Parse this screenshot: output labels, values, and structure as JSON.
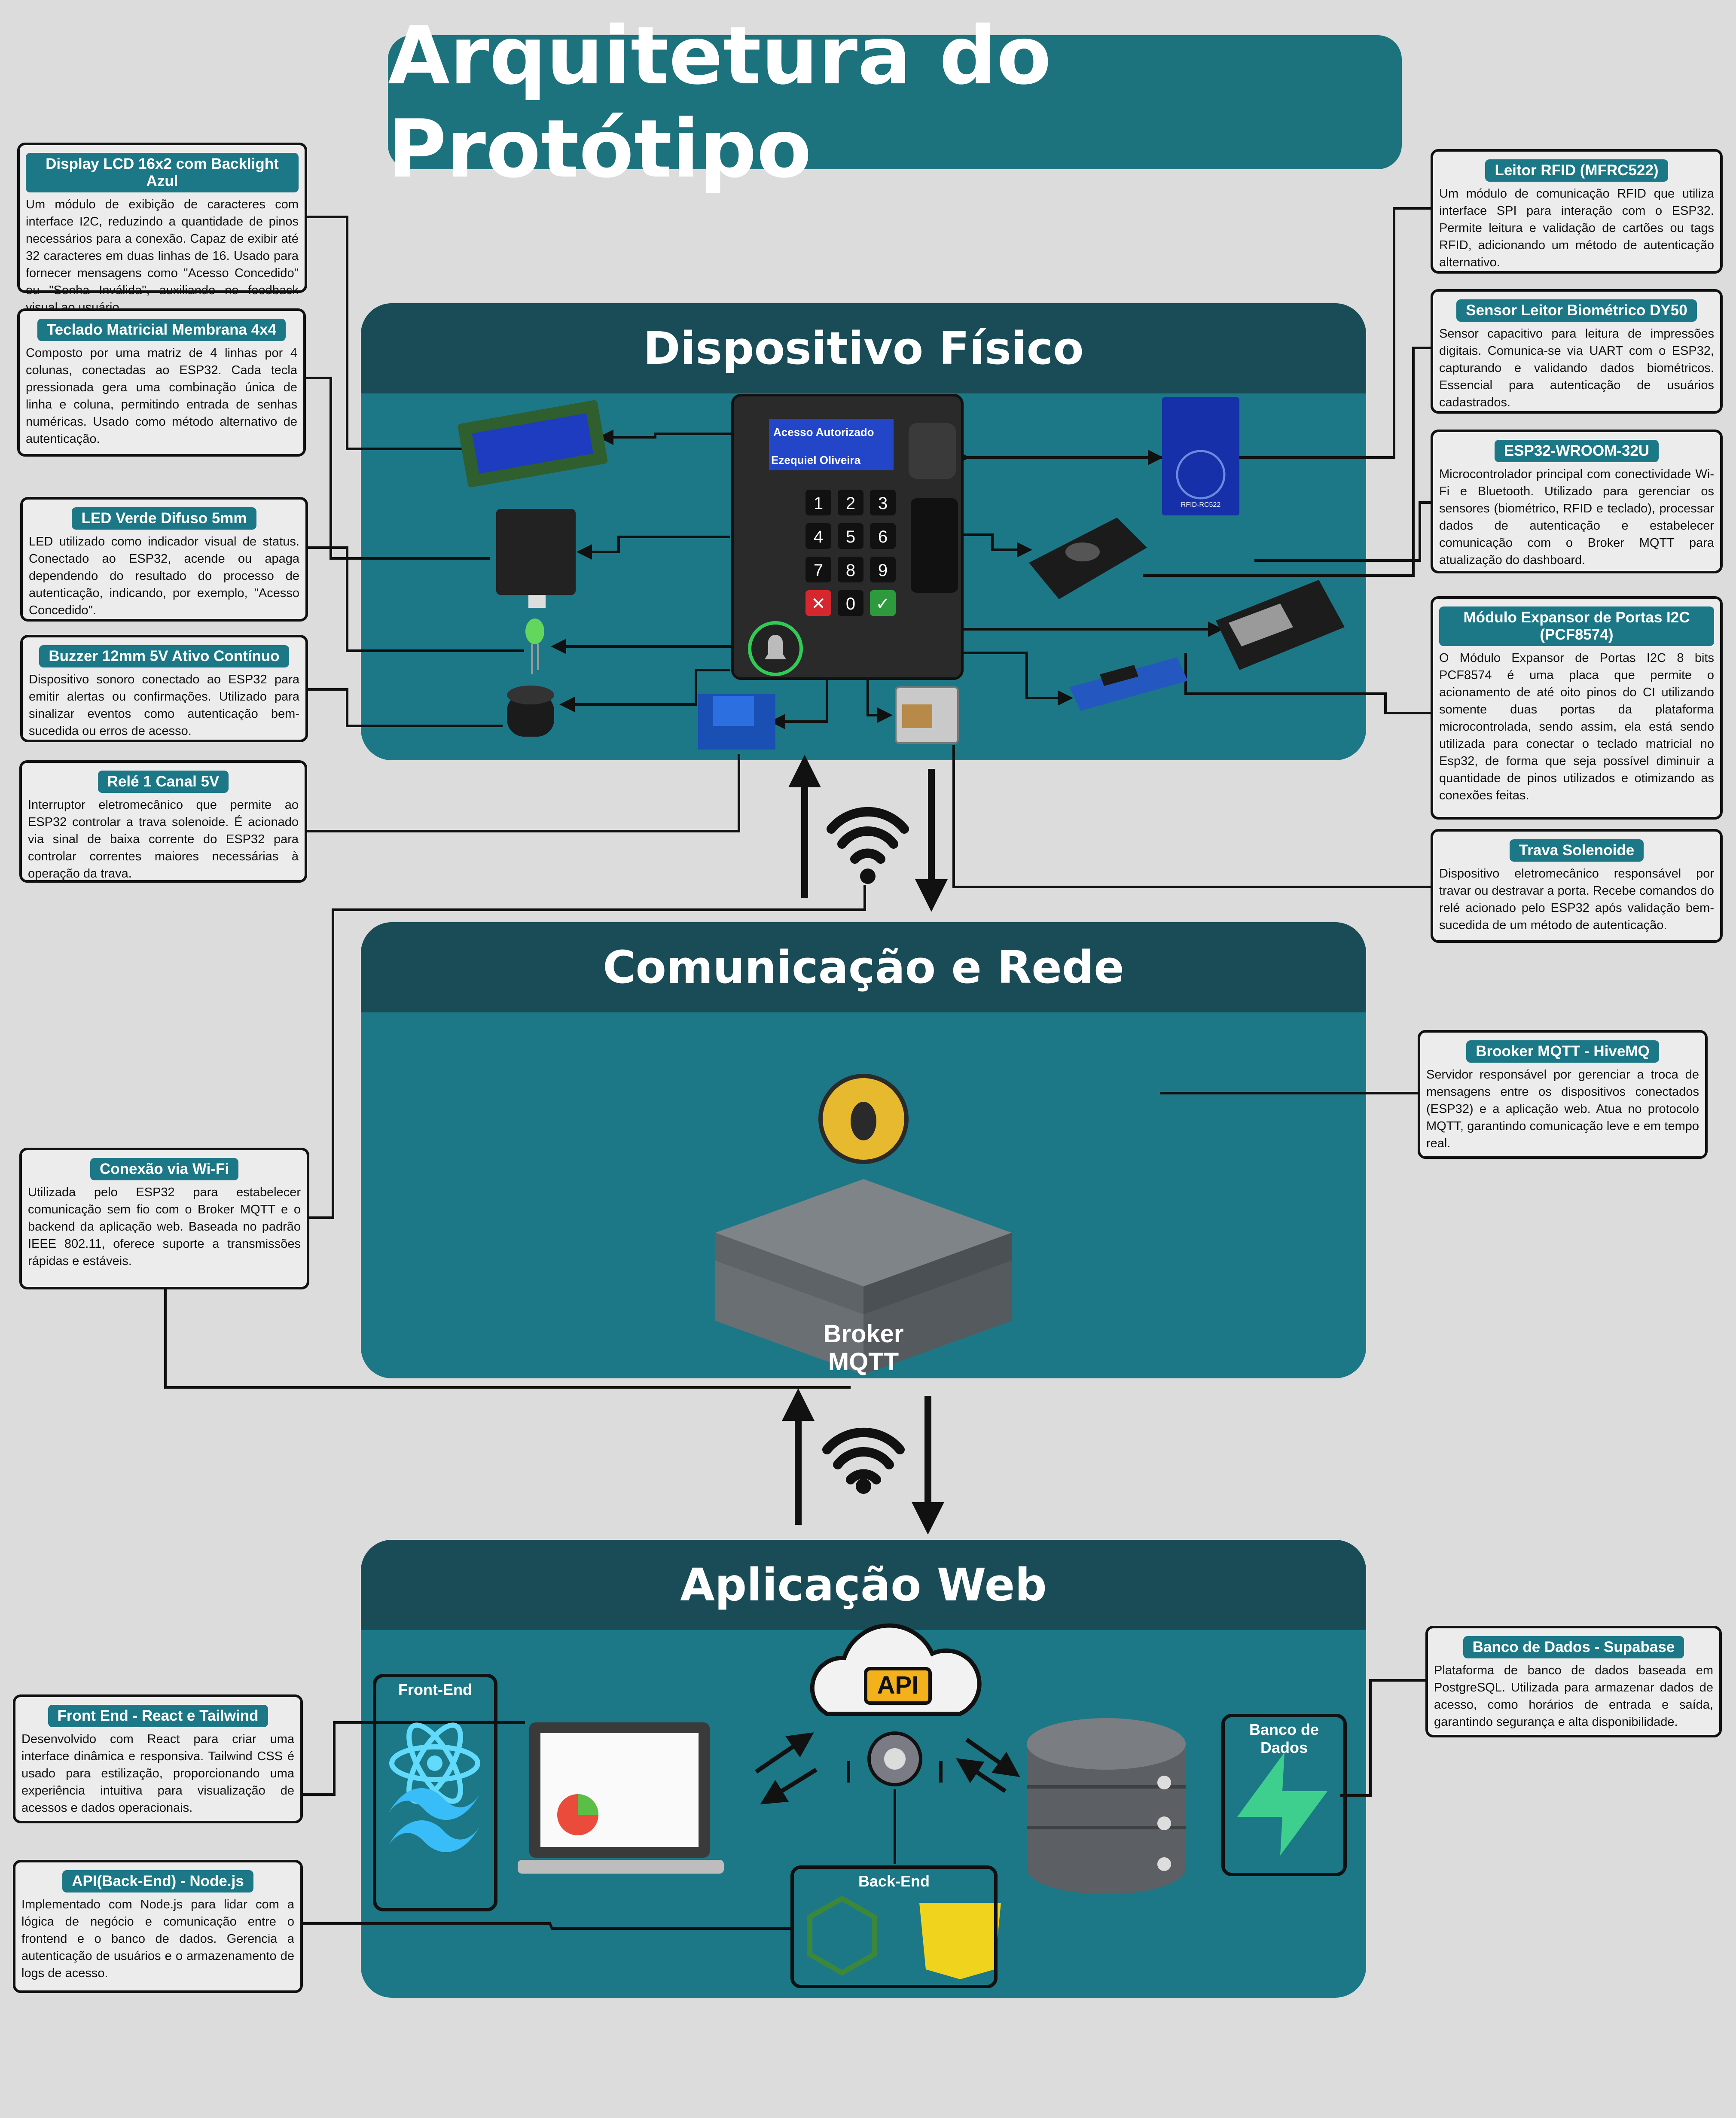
{
  "title": "Arquitetura do Protótipo",
  "sections": {
    "physical": "Dispositivo Físico",
    "network": "Comunicação e Rede",
    "web": "Aplicação Web"
  },
  "device_screen": {
    "line1": "Acesso Autorizado",
    "line2": "Ezequiel Oliveira"
  },
  "keypad_keys": [
    "1",
    "2",
    "3",
    "4",
    "5",
    "6",
    "7",
    "8",
    "9",
    "✕",
    "0",
    "✓"
  ],
  "rfid_label": "RFID-RC522",
  "broker_label": "Broker MQTT",
  "api_label": "API",
  "panels": {
    "frontend": "Front-End",
    "backend": "Back-End",
    "database": "Banco de Dados"
  },
  "boxes": {
    "lcd": {
      "title": "Display LCD 16x2 com Backlight Azul",
      "text": "Um módulo de exibição de caracteres com interface I2C, reduzindo a quantidade de pinos necessários para a conexão. Capaz de exibir até 32 caracteres em duas linhas de 16. Usado para fornecer mensagens como \"Acesso Concedido\" ou \"Senha Inválida\", auxiliando no feedback visual ao usuário."
    },
    "keypad": {
      "title": "Teclado Matricial Membrana 4x4",
      "text": "Composto por uma matriz de 4 linhas por 4 colunas, conectadas ao ESP32. Cada tecla pressionada gera uma combinação única de linha e coluna, permitindo entrada de senhas numéricas. Usado como método alternativo de autenticação."
    },
    "led": {
      "title": "LED Verde Difuso 5mm",
      "text": "LED utilizado como indicador visual de status. Conectado ao ESP32, acende ou apaga dependendo do resultado do processo de autenticação, indicando, por exemplo, \"Acesso Concedido\"."
    },
    "buzzer": {
      "title": "Buzzer 12mm 5V Ativo Contínuo",
      "text": "Dispositivo sonoro conectado ao ESP32 para emitir alertas ou confirmações. Utilizado para sinalizar eventos como autenticação bem-sucedida ou erros de acesso."
    },
    "relay": {
      "title": "Relé 1 Canal 5V",
      "text": "Interruptor eletromecânico que permite ao ESP32 controlar a trava solenoide. É acionado via sinal de baixa corrente do ESP32 para controlar correntes maiores necessárias à operação da trava."
    },
    "rfid": {
      "title": "Leitor RFID (MFRC522)",
      "text": "Um módulo de comunicação RFID que utiliza interface SPI para interação com o ESP32. Permite leitura e validação de cartões ou tags RFID, adicionando um método de autenticação alternativo."
    },
    "bio": {
      "title": "Sensor Leitor Biométrico DY50",
      "text": "Sensor capacitivo para leitura de impressões digitais. Comunica-se via UART com o ESP32, capturando e validando dados biométricos. Essencial para autenticação de usuários cadastrados."
    },
    "esp32": {
      "title": "ESP32-WROOM-32U",
      "text": "Microcontrolador principal com conectividade Wi-Fi e Bluetooth. Utilizado para gerenciar os sensores (biométrico, RFID e teclado), processar dados de autenticação e estabelecer comunicação com o Broker MQTT para atualização do dashboard."
    },
    "pcf": {
      "title": "Módulo Expansor de Portas I2C (PCF8574)",
      "text": "O Módulo Expansor de Portas I2C 8 bits PCF8574 é uma placa que permite o acionamento de até oito pinos do CI utilizando somente duas portas da plataforma microcontrolada, sendo assim, ela está sendo utilizada para conectar o teclado matricial no Esp32, de forma que seja possível diminuir a quantidade de pinos utilizados e otimizando as conexões feitas."
    },
    "lock": {
      "title": "Trava Solenoide",
      "text": "Dispositivo eletromecânico responsável por travar ou destravar a porta. Recebe comandos do relé acionado pelo ESP32 após validação bem-sucedida de um método de autenticação."
    },
    "mqtt": {
      "title": "Brooker MQTT - HiveMQ",
      "text": "Servidor responsável por gerenciar a troca de mensagens entre os dispositivos conectados (ESP32) e a aplicação web. Atua no protocolo MQTT, garantindo comunicação leve e em tempo real."
    },
    "wifi": {
      "title": "Conexão via Wi-Fi",
      "text": "Utilizada pelo ESP32 para estabelecer comunicação sem fio com o Broker MQTT e o backend da aplicação web. Baseada no padrão IEEE 802.11, oferece suporte a transmissões rápidas e estáveis."
    },
    "front": {
      "title": "Front End - React e Tailwind",
      "text": "Desenvolvido com React para criar uma interface dinâmica e responsiva. Tailwind CSS é usado para estilização, proporcionando uma experiência intuitiva para visualização de acessos e dados operacionais."
    },
    "api": {
      "title": "API(Back-End) - Node.js",
      "text": "Implementado com Node.js para lidar com a lógica de negócio e comunicação entre o frontend e o banco de dados. Gerencia a autenticação de usuários e o armazenamento de logs de acesso."
    },
    "db": {
      "title": "Banco de Dados - Supabase",
      "text": "Plataforma de banco de dados baseada em PostgreSQL. Utilizada para armazenar dados de acesso, como horários de entrada e saída, garantindo segurança e alta disponibilidade."
    }
  },
  "colors": {
    "background": "#dcdcdc",
    "section": "#1c7887",
    "section_header": "#1a4c57",
    "accent": "#1c737e"
  },
  "icons": [
    "wifi-icon",
    "bell-icon",
    "api-cloud-icon",
    "react-icon",
    "tailwind-icon",
    "nodejs-icon",
    "javascript-icon",
    "supabase-icon",
    "database-icon",
    "bee-icon"
  ]
}
